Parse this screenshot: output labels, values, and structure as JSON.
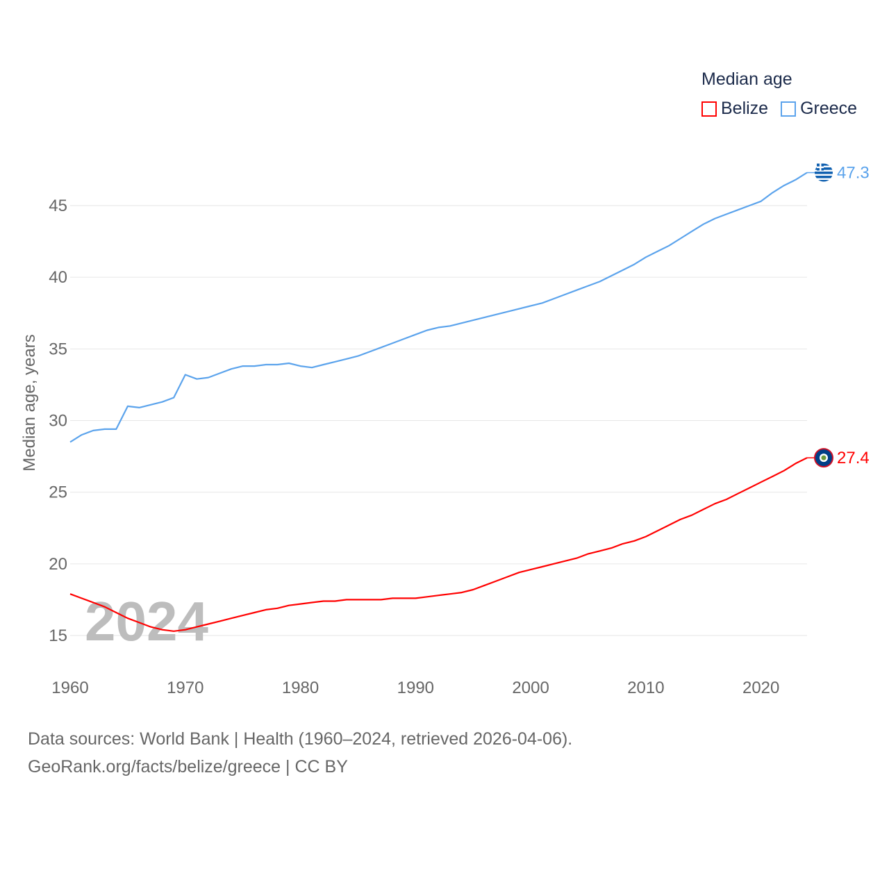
{
  "chart_data": {
    "type": "line",
    "title": "",
    "legend_title": "Median age",
    "legend_position": "top-right",
    "xlabel": "",
    "ylabel": "Median age, years",
    "xlim": [
      1960,
      2024
    ],
    "ylim": [
      13,
      49
    ],
    "x_ticks": [
      1960,
      1970,
      1980,
      1990,
      2000,
      2010,
      2020
    ],
    "y_ticks": [
      15,
      20,
      25,
      30,
      35,
      40,
      45
    ],
    "grid": true,
    "watermark_year": "2024",
    "x": [
      1960,
      1961,
      1962,
      1963,
      1964,
      1965,
      1966,
      1967,
      1968,
      1969,
      1970,
      1971,
      1972,
      1973,
      1974,
      1975,
      1976,
      1977,
      1978,
      1979,
      1980,
      1981,
      1982,
      1983,
      1984,
      1985,
      1986,
      1987,
      1988,
      1989,
      1990,
      1991,
      1992,
      1993,
      1994,
      1995,
      1996,
      1997,
      1998,
      1999,
      2000,
      2001,
      2002,
      2003,
      2004,
      2005,
      2006,
      2007,
      2008,
      2009,
      2010,
      2011,
      2012,
      2013,
      2014,
      2015,
      2016,
      2017,
      2018,
      2019,
      2020,
      2021,
      2022,
      2023,
      2024
    ],
    "series": [
      {
        "name": "Belize",
        "color": "#ff0000",
        "end_label": "27.4",
        "values": [
          17.9,
          17.6,
          17.3,
          17.0,
          16.6,
          16.2,
          15.9,
          15.6,
          15.4,
          15.3,
          15.4,
          15.6,
          15.8,
          16.0,
          16.2,
          16.4,
          16.6,
          16.8,
          16.9,
          17.1,
          17.2,
          17.3,
          17.4,
          17.4,
          17.5,
          17.5,
          17.5,
          17.5,
          17.6,
          17.6,
          17.6,
          17.7,
          17.8,
          17.9,
          18.0,
          18.2,
          18.5,
          18.8,
          19.1,
          19.4,
          19.6,
          19.8,
          20.0,
          20.2,
          20.4,
          20.7,
          20.9,
          21.1,
          21.4,
          21.6,
          21.9,
          22.3,
          22.7,
          23.1,
          23.4,
          23.8,
          24.2,
          24.5,
          24.9,
          25.3,
          25.7,
          26.1,
          26.5,
          27.0,
          27.4
        ]
      },
      {
        "name": "Greece",
        "color": "#5ba3ec",
        "end_label": "47.3",
        "values": [
          28.5,
          29.0,
          29.3,
          29.4,
          29.4,
          31.0,
          30.9,
          31.1,
          31.3,
          31.6,
          33.2,
          32.9,
          33.0,
          33.3,
          33.6,
          33.8,
          33.8,
          33.9,
          33.9,
          34.0,
          33.8,
          33.7,
          33.9,
          34.1,
          34.3,
          34.5,
          34.8,
          35.1,
          35.4,
          35.7,
          36.0,
          36.3,
          36.5,
          36.6,
          36.8,
          37.0,
          37.2,
          37.4,
          37.6,
          37.8,
          38.0,
          38.2,
          38.5,
          38.8,
          39.1,
          39.4,
          39.7,
          40.1,
          40.5,
          40.9,
          41.4,
          41.8,
          42.2,
          42.7,
          43.2,
          43.7,
          44.1,
          44.4,
          44.7,
          45.0,
          45.3,
          45.9,
          46.4,
          46.8,
          47.3
        ]
      }
    ]
  },
  "source": {
    "line1": "Data sources: World Bank | Health (1960–2024, retrieved 2026-04-06).",
    "line2": "GeoRank.org/facts/belize/greece | CC BY"
  }
}
